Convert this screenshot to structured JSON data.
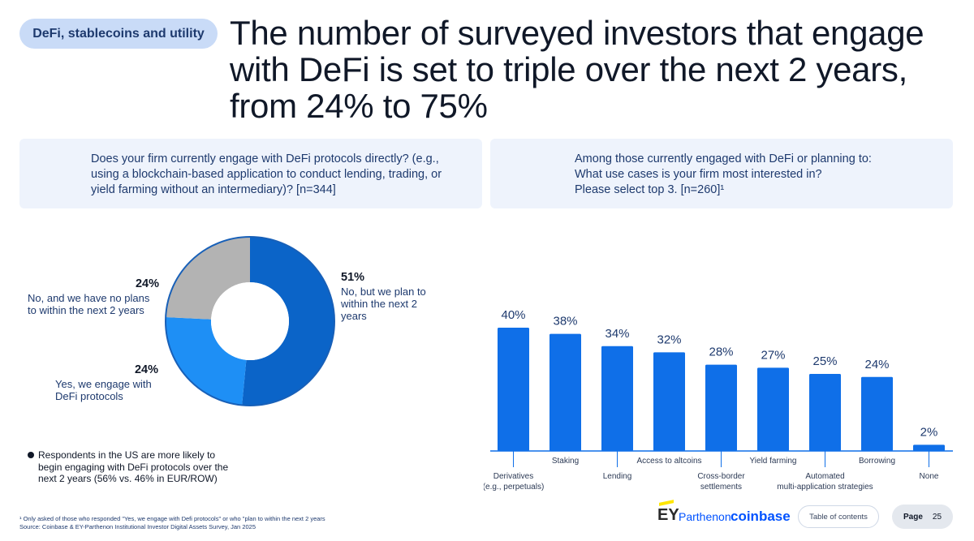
{
  "section_tag": "DeFi, stablecoins and utility",
  "headline": "The number of surveyed investors that engage with DeFi is set to triple over the next 2 years, from 24% to 75%",
  "question_left": "Does your firm currently engage with DeFi protocols directly? (e.g., using a blockchain-based application to conduct lending, trading, or yield farming without an intermediary)? [n=344]",
  "question_right_lines": [
    "Among those currently engaged with DeFi or planning to:",
    "What use cases is your firm most interested in?",
    "Please select top 3. [n=260]¹"
  ],
  "bullet_note": "Respondents in the US are more likely to begin engaging with DeFi protocols over the next 2 years (56% vs. 46% in EUR/ROW)",
  "footnote_1": "¹ Only asked of those who responded \"Yes, we engage with Defi protocols\" or who \"plan to within the next 2 years",
  "footnote_source": "Source: Coinbase & EY-Parthenon Institutional Investor Digital Assets Survey, Jan 2025",
  "logos": {
    "ey": "EY",
    "parthenon": "Parthenon",
    "coinbase": "coinbase"
  },
  "nav": {
    "toc_label": "Table of contents",
    "page_label": "Page",
    "page_number": "25"
  },
  "colors": {
    "pie_plan": "#0b64c8",
    "pie_engage": "#1e8ff5",
    "pie_noplan": "#b3b3b3",
    "bar": "#0f6fe8",
    "text_dark": "#101828",
    "text_navy": "#1e3a6e",
    "panel_bg": "#eef3fc",
    "pill_bg": "#c9dbf7"
  },
  "chart_data": [
    {
      "type": "pie",
      "donut": true,
      "slices": [
        {
          "label": "No, but we plan to within the next 2 years",
          "pct_label": "51%",
          "value": 51,
          "color": "#0b64c8"
        },
        {
          "label": "Yes, we engage with DeFi protocols",
          "pct_label": "24%",
          "value": 24,
          "color": "#1e8ff5"
        },
        {
          "label": "No, and we have no plans to within the next 2 years",
          "pct_label": "24%",
          "value": 24,
          "color": "#b3b3b3"
        }
      ]
    },
    {
      "type": "bar",
      "categories": [
        "Derivatives (e.g., perpetuals)",
        "Staking",
        "Lending",
        "Access to altcoins",
        "Cross-border settlements",
        "Yield farming",
        "Automated multi-application strategies",
        "Borrowing",
        "None"
      ],
      "category_lines": [
        [
          "Derivatives",
          "(e.g., perpetuals)"
        ],
        [
          "Staking"
        ],
        [
          "Lending"
        ],
        [
          "Access to altcoins"
        ],
        [
          "Cross-border",
          "settlements"
        ],
        [
          "Yield farming"
        ],
        [
          "Automated",
          "multi-application strategies"
        ],
        [
          "Borrowing"
        ],
        [
          "None"
        ]
      ],
      "values": [
        40,
        38,
        34,
        32,
        28,
        27,
        25,
        24,
        2
      ],
      "value_labels": [
        "40%",
        "38%",
        "34%",
        "32%",
        "28%",
        "27%",
        "25%",
        "24%",
        "2%"
      ],
      "ylim": [
        0,
        40
      ],
      "grid": false
    }
  ]
}
